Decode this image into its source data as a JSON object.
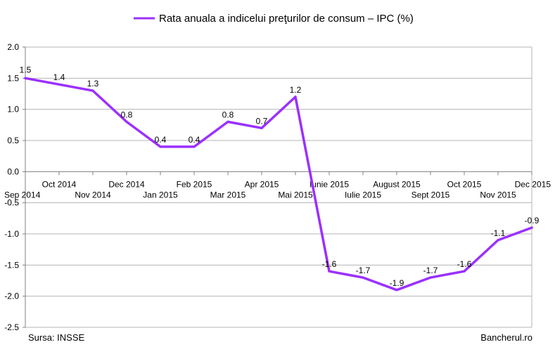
{
  "chart_data": {
    "type": "line",
    "title": "",
    "xlabel": "",
    "ylabel": "",
    "ylim": [
      -2.5,
      2.0
    ],
    "yticks": [
      "2.0",
      "1.5",
      "1.0",
      "0.5",
      "0.0",
      "-0.5",
      "-1.0",
      "-1.5",
      "-2.0",
      "-2.5"
    ],
    "grid": true,
    "legend": "top",
    "categories": [
      "Sep 2014",
      "Oct 2014",
      "Nov 2014",
      "Dec 2014",
      "Jan 2015",
      "Feb 2015",
      "Mar 2015",
      "Apr 2015",
      "Mai 2015",
      "Iunie 2015",
      "Iulie 2015",
      "August 2015",
      "Sept 2015",
      "Oct 2015",
      "Nov 2015",
      "Dec 2015"
    ],
    "series": [
      {
        "name": "Rata anuala a indicelui preţurilor de consum – IPC (%)",
        "color": "#9b30ff",
        "values": [
          1.5,
          1.4,
          1.3,
          0.8,
          0.4,
          0.4,
          0.8,
          0.7,
          1.2,
          -1.6,
          -1.7,
          -1.9,
          -1.7,
          -1.6,
          -1.1,
          -0.9
        ],
        "labels": [
          "1.5",
          "1.4",
          "1.3",
          "0.8",
          "0.4",
          "0.4",
          "0.8",
          "0.7",
          "1.2",
          "-1.6",
          "-1.7",
          "-1.9",
          "-1.7",
          "-1.6",
          "-1.1",
          "-0.9"
        ]
      }
    ]
  },
  "footer": {
    "source": "Sursa: INSSE",
    "brand": "Bancherul.ro"
  }
}
